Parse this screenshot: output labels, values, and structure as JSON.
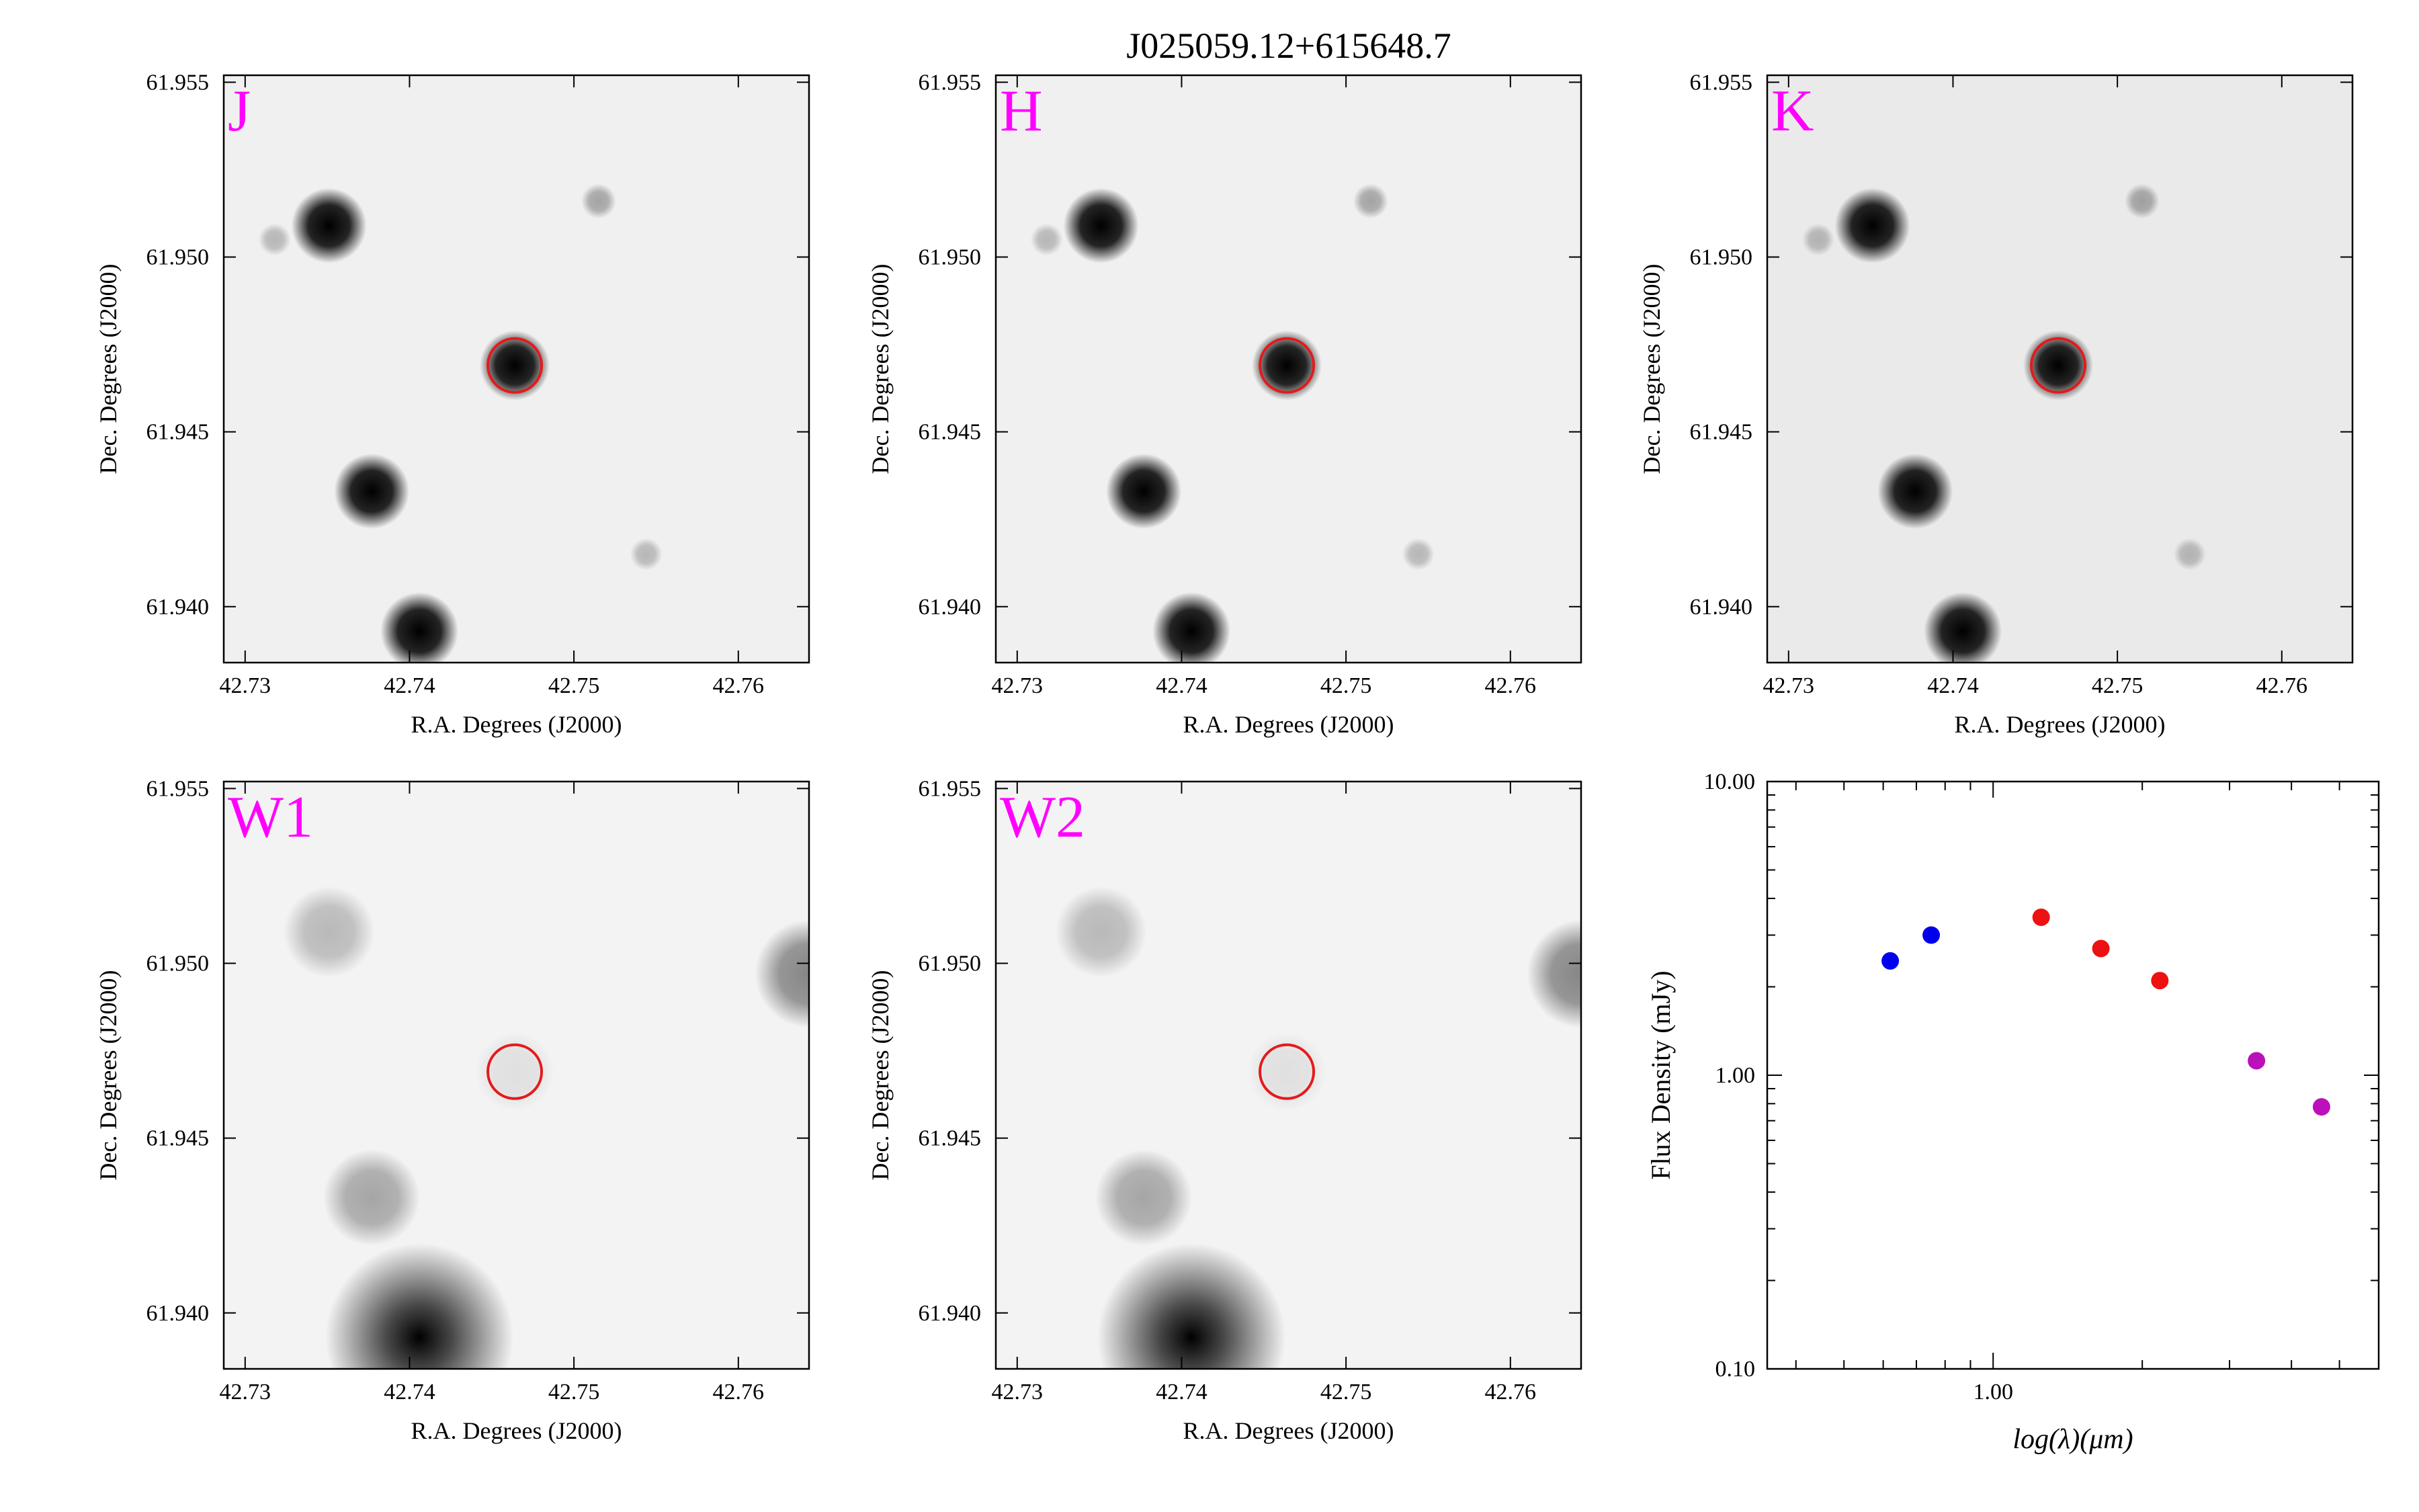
{
  "figure": {
    "title": "J025059.12+615648.7"
  },
  "cutouts": [
    {
      "band": "J",
      "xlabel": "R.A. Degrees (J2000)",
      "ylabel": "Dec. Degrees (J2000)"
    },
    {
      "band": "H",
      "xlabel": "R.A. Degrees (J2000)",
      "ylabel": "Dec. Degrees (J2000)"
    },
    {
      "band": "K",
      "xlabel": "R.A. Degrees (J2000)",
      "ylabel": "Dec. Degrees (J2000)"
    },
    {
      "band": "W1",
      "xlabel": "R.A. Degrees (J2000)",
      "ylabel": "Dec. Degrees (J2000)"
    },
    {
      "band": "W2",
      "xlabel": "R.A. Degrees (J2000)",
      "ylabel": "Dec. Degrees (J2000)"
    }
  ],
  "cutout_axes": {
    "ra_ticks": [
      "42.73",
      "42.74",
      "42.75",
      "42.76"
    ],
    "dec_ticks": [
      "61.955",
      "61.950",
      "61.945",
      "61.940"
    ],
    "ra_range": [
      42.7287,
      42.7643
    ],
    "dec_range": [
      61.9384,
      61.9552
    ]
  },
  "target": {
    "ra": 42.7464,
    "dec": 61.9469,
    "marker_color": "#e41a1c"
  },
  "stars": [
    {
      "ra": 42.7351,
      "dec": 61.9509,
      "jhk_level": 0.95,
      "wise_level": 0.15
    },
    {
      "ra": 42.7377,
      "dec": 61.9433,
      "jhk_level": 0.95,
      "wise_level": 0.2
    },
    {
      "ra": 42.7406,
      "dec": 61.9393,
      "jhk_level": 1.0,
      "wise_level": 1.0
    },
    {
      "ra": 42.7464,
      "dec": 61.9469,
      "jhk_level": 0.85,
      "wise_level": 0.05
    },
    {
      "ra": 42.7515,
      "dec": 61.9516,
      "jhk_level": 0.2,
      "wise_level": 0.0
    },
    {
      "ra": 42.7544,
      "dec": 61.9415,
      "jhk_level": 0.15,
      "wise_level": 0.0
    },
    {
      "ra": 42.7318,
      "dec": 61.9505,
      "jhk_level": 0.15,
      "wise_level": 0.0
    },
    {
      "ra": 42.7643,
      "dec": 61.9497,
      "jhk_level": 0.0,
      "wise_level": 0.3
    }
  ],
  "band_label_color": "#ff00ff",
  "chart_data": {
    "type": "scatter",
    "xlabel": "log(λ)(μm)",
    "ylabel": "Flux Density (mJy)",
    "x_log": true,
    "y_log": true,
    "xlim": [
      0.35,
      6.0
    ],
    "ylim": [
      0.1,
      10.0
    ],
    "x_tick_labels": [
      "1.00"
    ],
    "y_tick_labels": [
      "10.00",
      "1.00",
      "0.10"
    ],
    "points": [
      {
        "x": 0.62,
        "y": 2.45,
        "color": "#0000ee"
      },
      {
        "x": 0.75,
        "y": 3.0,
        "color": "#0000ee"
      },
      {
        "x": 1.25,
        "y": 3.45,
        "color": "#ee1111"
      },
      {
        "x": 1.65,
        "y": 2.7,
        "color": "#ee1111"
      },
      {
        "x": 2.17,
        "y": 2.1,
        "color": "#ee1111"
      },
      {
        "x": 3.4,
        "y": 1.12,
        "color": "#bb11bb"
      },
      {
        "x": 4.6,
        "y": 0.78,
        "color": "#bb11bb"
      }
    ]
  }
}
